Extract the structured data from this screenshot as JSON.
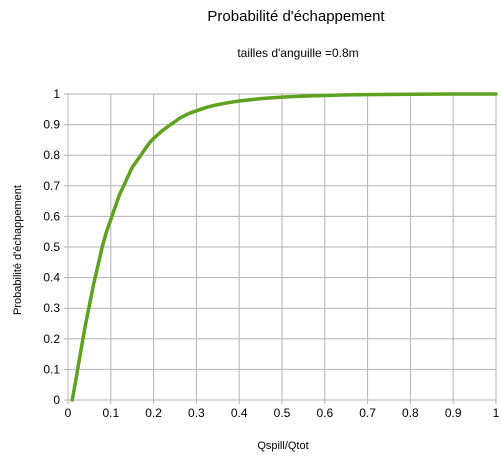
{
  "chart_data": {
    "type": "line",
    "title": "Probabilité d'échappement",
    "subtitle": "tailles d'anguille =0.8m",
    "xlabel": "Qspill/Qtot",
    "ylabel": "Probabilité d'échappement",
    "xlim": [
      0,
      1
    ],
    "ylim": [
      0,
      1
    ],
    "x_ticks": [
      0,
      0.1,
      0.2,
      0.3,
      0.4,
      0.5,
      0.6,
      0.7,
      0.8,
      0.9,
      1
    ],
    "x_tick_labels": [
      "0",
      "0.1",
      "0.2",
      "0.3",
      "0.4",
      "0.5",
      "0.6",
      "0.7",
      "0.8",
      "0.9",
      "1"
    ],
    "y_ticks": [
      0,
      0.1,
      0.2,
      0.3,
      0.4,
      0.5,
      0.6,
      0.7,
      0.8,
      0.9,
      1
    ],
    "y_tick_labels": [
      "0",
      "0.1",
      "0.2",
      "0.3",
      "0.4",
      "0.5",
      "0.6",
      "0.7",
      "0.8",
      "0.9",
      "1"
    ],
    "grid": true,
    "legend": "none",
    "series": [
      {
        "color": "#5ea11e",
        "x": [
          0.01,
          0.02,
          0.03,
          0.04,
          0.05,
          0.06,
          0.07,
          0.08,
          0.09,
          0.1,
          0.11,
          0.12,
          0.13,
          0.14,
          0.15,
          0.16,
          0.17,
          0.18,
          0.19,
          0.2,
          0.22,
          0.24,
          0.26,
          0.28,
          0.3,
          0.32,
          0.34,
          0.36,
          0.38,
          0.4,
          0.45,
          0.5,
          0.55,
          0.6,
          0.65,
          0.7,
          0.8,
          0.9,
          1.0
        ],
        "y": [
          0.0,
          0.08,
          0.16,
          0.24,
          0.31,
          0.38,
          0.44,
          0.5,
          0.55,
          0.59,
          0.63,
          0.67,
          0.7,
          0.73,
          0.76,
          0.78,
          0.8,
          0.82,
          0.84,
          0.855,
          0.88,
          0.9,
          0.92,
          0.935,
          0.945,
          0.955,
          0.962,
          0.968,
          0.973,
          0.977,
          0.985,
          0.99,
          0.993,
          0.995,
          0.997,
          0.998,
          0.999,
          1.0,
          1.0
        ]
      }
    ]
  }
}
